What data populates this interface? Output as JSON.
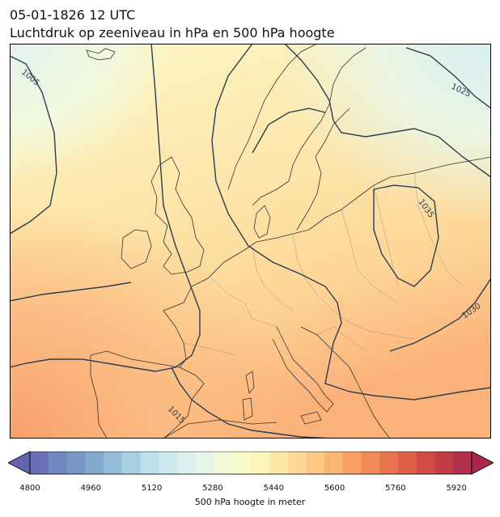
{
  "header": {
    "datetime": "05-01-1826 12 UTC",
    "subtitle": "Luchtdruk op zeeniveau in hPa en 500 hPa hoogte"
  },
  "map": {
    "region": "Europe",
    "isobar_labels": [
      "1005",
      "1015",
      "1025",
      "1030",
      "1035"
    ],
    "colors": {
      "land_outline": "#333333",
      "borders": "#8a8a8a",
      "isobar": "#2b3d52"
    }
  },
  "colorbar": {
    "label": "500 hPa hoogte in meter",
    "ticks": [
      "4800",
      "4960",
      "5120",
      "5280",
      "5440",
      "5600",
      "5760",
      "5920"
    ],
    "range": [
      4800,
      5960
    ],
    "colors": [
      "#6c6fb6",
      "#7187bf",
      "#7897c7",
      "#83a9cf",
      "#95bcd8",
      "#a8cfe2",
      "#bce1ec",
      "#cde8ef",
      "#dcf0f0",
      "#e7f5e6",
      "#f0f8d8",
      "#f6fbc7",
      "#fcf5bb",
      "#fde8a7",
      "#fdd995",
      "#fdc883",
      "#fbb574",
      "#f8a066",
      "#f28a5a",
      "#e97550",
      "#de6049",
      "#d14c46",
      "#c23c48",
      "#b1304b"
    ]
  }
}
